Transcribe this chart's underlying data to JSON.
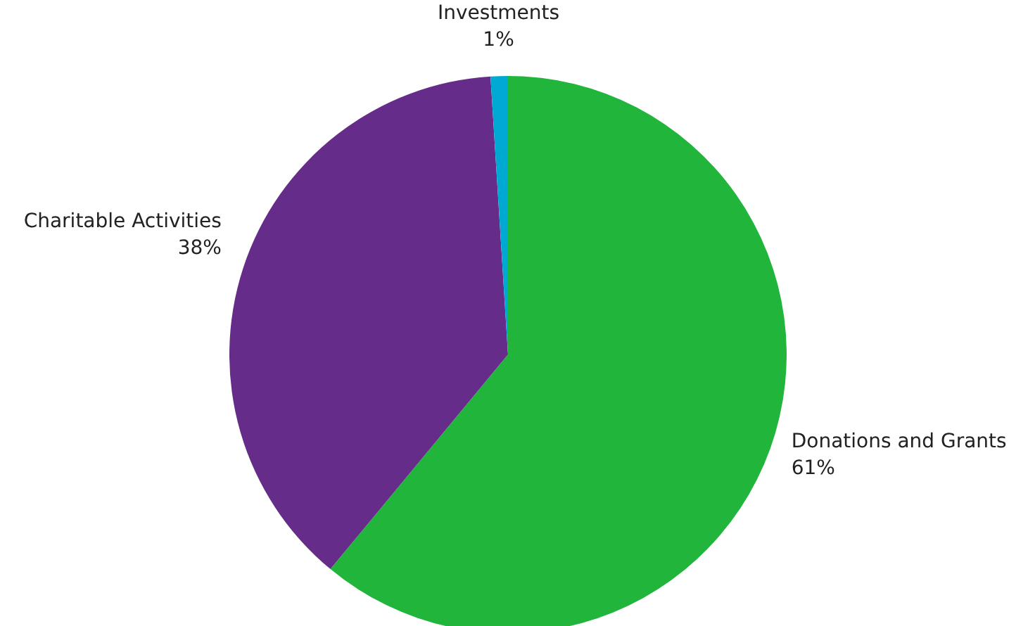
{
  "chart_data": {
    "type": "pie",
    "categories": [
      "Donations and Grants",
      "Charitable Activities",
      "Investments"
    ],
    "values": [
      61,
      38,
      1
    ],
    "colors": [
      "#21b53c",
      "#652d89",
      "#00a9d1"
    ],
    "value_labels": [
      "61%",
      "38%",
      "1%"
    ],
    "legend": false
  }
}
